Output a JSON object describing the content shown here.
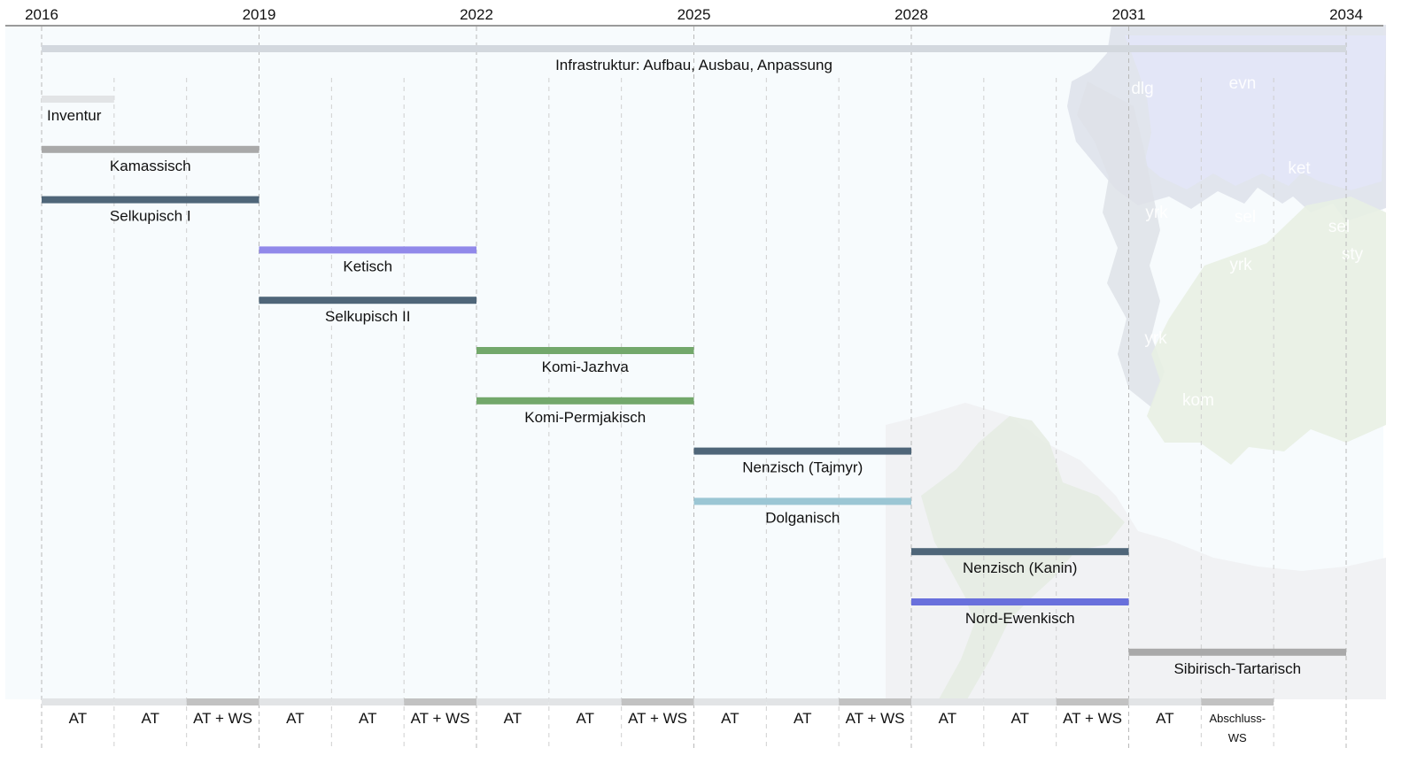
{
  "chart_data": {
    "type": "gantt",
    "x_axis": {
      "ticks": [
        2016,
        2019,
        2022,
        2025,
        2028,
        2031,
        2034
      ],
      "tick_labels": [
        "2016",
        "2019",
        "2022",
        "2025",
        "2028",
        "2031",
        "2034"
      ],
      "range": [
        2016,
        2034
      ],
      "grid": true
    },
    "infrastructure": {
      "label": "Infrastruktur: Aufbau, Ausbau, Anpassung",
      "start": 2016,
      "end": 2034,
      "color": "#d3d8de"
    },
    "tasks": [
      {
        "label": "Inventur",
        "start": 2016,
        "end": 2017,
        "color": "#e2e4e6",
        "label_align": "left"
      },
      {
        "label": "Kamassisch",
        "start": 2016,
        "end": 2019,
        "color": "#a9a9a9"
      },
      {
        "label": "Selkupisch I",
        "start": 2016,
        "end": 2019,
        "color": "#4f6679"
      },
      {
        "label": "Ketisch",
        "start": 2019,
        "end": 2022,
        "color": "#9189ea"
      },
      {
        "label": "Selkupisch II",
        "start": 2019,
        "end": 2022,
        "color": "#4f6679"
      },
      {
        "label": "Komi-Jazhva",
        "start": 2022,
        "end": 2025,
        "color": "#73a86b"
      },
      {
        "label": "Komi-Permjakisch",
        "start": 2022,
        "end": 2025,
        "color": "#73a86b"
      },
      {
        "label": "Nenzisch (Tajmyr)",
        "start": 2025,
        "end": 2028,
        "color": "#4f6679"
      },
      {
        "label": "Dolganisch",
        "start": 2025,
        "end": 2028,
        "color": "#9bc6d4"
      },
      {
        "label": "Nenzisch (Kanin)",
        "start": 2028,
        "end": 2031,
        "color": "#4f6679"
      },
      {
        "label": "Nord-Ewenkisch",
        "start": 2028,
        "end": 2031,
        "color": "#6970dc"
      },
      {
        "label": "Sibirisch-Tartarisch",
        "start": 2031,
        "end": 2034,
        "color": "#a9a9a9"
      }
    ],
    "phases": [
      {
        "label": "AT",
        "start": 2016,
        "end": 2017,
        "color": "#e2e4e6"
      },
      {
        "label": "AT",
        "start": 2017,
        "end": 2018,
        "color": "#e2e4e6"
      },
      {
        "label": "AT + WS",
        "start": 2018,
        "end": 2019,
        "color": "#c2c2c2"
      },
      {
        "label": "AT",
        "start": 2019,
        "end": 2020,
        "color": "#e2e4e6"
      },
      {
        "label": "AT",
        "start": 2020,
        "end": 2021,
        "color": "#e2e4e6"
      },
      {
        "label": "AT + WS",
        "start": 2021,
        "end": 2022,
        "color": "#c2c2c2"
      },
      {
        "label": "AT",
        "start": 2022,
        "end": 2023,
        "color": "#e2e4e6"
      },
      {
        "label": "AT",
        "start": 2023,
        "end": 2024,
        "color": "#e2e4e6"
      },
      {
        "label": "AT + WS",
        "start": 2024,
        "end": 2025,
        "color": "#c2c2c2"
      },
      {
        "label": "AT",
        "start": 2025,
        "end": 2026,
        "color": "#e2e4e6"
      },
      {
        "label": "AT",
        "start": 2026,
        "end": 2027,
        "color": "#e2e4e6"
      },
      {
        "label": "AT + WS",
        "start": 2027,
        "end": 2028,
        "color": "#c2c2c2"
      },
      {
        "label": "AT",
        "start": 2028,
        "end": 2029,
        "color": "#e2e4e6"
      },
      {
        "label": "AT",
        "start": 2029,
        "end": 2030,
        "color": "#e2e4e6"
      },
      {
        "label": "AT + WS",
        "start": 2030,
        "end": 2031,
        "color": "#c2c2c2"
      },
      {
        "label": "AT",
        "start": 2031,
        "end": 2032,
        "color": "#e2e4e6"
      },
      {
        "label": "Abschluss-\nWS",
        "start": 2032,
        "end": 2033,
        "color": "#c2c2c2",
        "small": true
      }
    ],
    "map_labels": [
      "dlg",
      "evn",
      "ket",
      "yrk",
      "sel",
      "sel",
      "sty",
      "yrk",
      "yrk",
      "kom"
    ],
    "colors": {
      "background": "#f7fbfd",
      "axis": "#9a9a9a",
      "grid": "#c8c8c8"
    }
  }
}
